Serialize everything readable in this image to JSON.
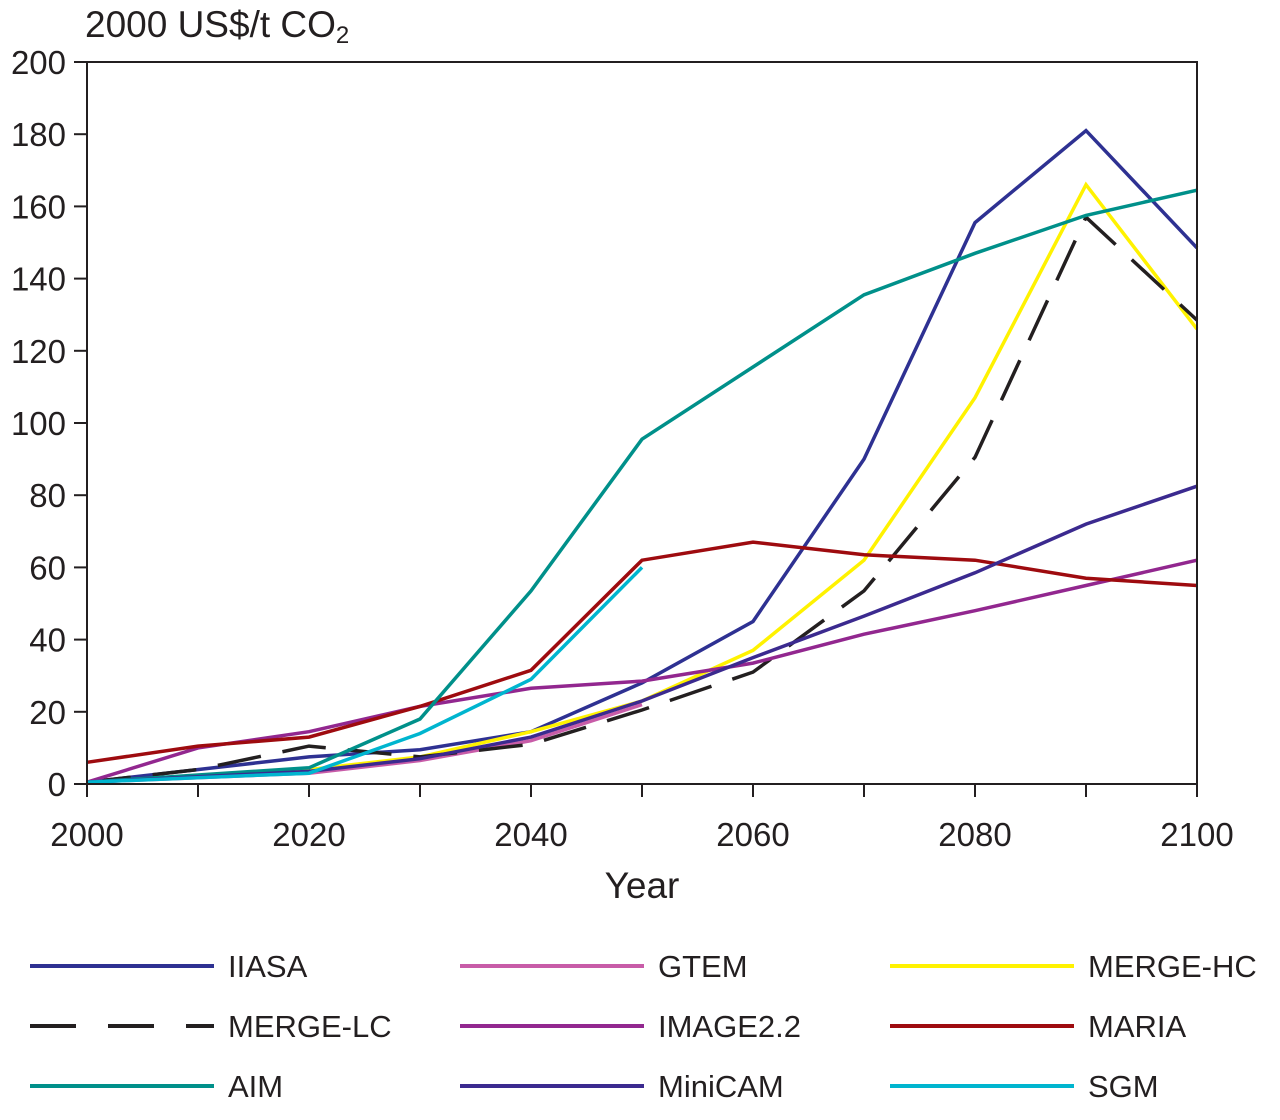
{
  "chart_data": {
    "type": "line",
    "title": "",
    "y_unit": "2000 US$/t CO",
    "y_unit_subscript": "2",
    "xlabel": "Year",
    "ylabel": "",
    "xlim": [
      2000,
      2100
    ],
    "ylim": [
      0,
      200
    ],
    "x_ticks": [
      2000,
      2020,
      2040,
      2060,
      2080,
      2100
    ],
    "x_minor_ticks": [
      2010,
      2030,
      2050,
      2070,
      2090
    ],
    "y_ticks": [
      0,
      20,
      40,
      60,
      80,
      100,
      120,
      140,
      160,
      180,
      200
    ],
    "grid": false,
    "legend_position": "bottom",
    "series": [
      {
        "name": "IIASA",
        "color": "#2e3192",
        "dash": "solid",
        "x": [
          2000,
          2020,
          2030,
          2040,
          2050,
          2060,
          2070,
          2080,
          2090,
          2100
        ],
        "y": [
          0.5,
          7.5,
          9.5,
          14.5,
          28,
          45,
          90,
          155.5,
          181,
          148.5
        ]
      },
      {
        "name": "GTEM",
        "color": "#c85ca8",
        "dash": "solid",
        "x": [
          2000,
          2020,
          2030,
          2040,
          2050
        ],
        "y": [
          0.5,
          3,
          6.5,
          12,
          22
        ]
      },
      {
        "name": "MERGE-HC",
        "color": "#fff200",
        "dash": "solid",
        "x": [
          2000,
          2020,
          2030,
          2040,
          2050,
          2060,
          2070,
          2080,
          2090,
          2100
        ],
        "y": [
          0.5,
          4,
          7.5,
          14.5,
          23,
          37,
          62,
          107,
          166,
          126
        ]
      },
      {
        "name": "MERGE-LC",
        "color": "#231f20",
        "dash": "dashed",
        "x": [
          2000,
          2010,
          2020,
          2030,
          2040,
          2050,
          2060,
          2070,
          2080,
          2090,
          2100
        ],
        "y": [
          0.5,
          4,
          10.5,
          7.5,
          11,
          20.5,
          31,
          53.5,
          90.5,
          157,
          128.5
        ]
      },
      {
        "name": "IMAGE2.2",
        "color": "#92278f",
        "dash": "solid",
        "x": [
          2000,
          2010,
          2020,
          2030,
          2040,
          2050,
          2060,
          2070,
          2080,
          2090,
          2100
        ],
        "y": [
          0.5,
          10,
          14.5,
          21.5,
          26.5,
          28.5,
          33.5,
          41.5,
          48,
          55,
          62
        ]
      },
      {
        "name": "MARIA",
        "color": "#9e0b0f",
        "dash": "solid",
        "x": [
          2000,
          2010,
          2020,
          2030,
          2040,
          2050,
          2060,
          2070,
          2080,
          2090,
          2100
        ],
        "y": [
          6,
          10.5,
          13,
          21.5,
          31.5,
          62,
          67,
          63.5,
          62,
          57,
          55
        ]
      },
      {
        "name": "AIM",
        "color": "#00908a",
        "dash": "solid",
        "x": [
          2000,
          2020,
          2030,
          2040,
          2050,
          2060,
          2070,
          2080,
          2090,
          2100
        ],
        "y": [
          0.5,
          4.5,
          18,
          53.5,
          95.5,
          115.5,
          135.5,
          147,
          157.5,
          164.5
        ]
      },
      {
        "name": "MiniCAM",
        "color": "#3b2a8f",
        "dash": "solid",
        "x": [
          2000,
          2020,
          2030,
          2040,
          2050,
          2060,
          2070,
          2080,
          2090,
          2100
        ],
        "y": [
          0.5,
          3.5,
          7,
          13,
          23,
          35,
          46.5,
          58.5,
          72,
          82.5
        ]
      },
      {
        "name": "SGM",
        "color": "#00b5cf",
        "dash": "solid",
        "x": [
          2000,
          2020,
          2030,
          2040,
          2050
        ],
        "y": [
          0.5,
          3,
          14,
          29,
          60
        ]
      }
    ]
  }
}
